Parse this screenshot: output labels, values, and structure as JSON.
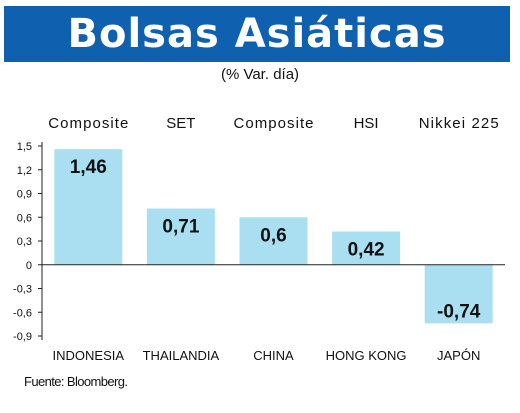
{
  "header": {
    "title": "Bolsas Asiáticas",
    "subtitle": "(% Var. día)"
  },
  "source": "Fuente: Bloomberg.",
  "colors": {
    "title_bg": "#1060b0",
    "bar": "#aadff2"
  },
  "chart_data": {
    "type": "bar",
    "title": "Bolsas Asiáticas",
    "subtitle": "(% Var. día)",
    "categories": [
      "INDONESIA",
      "THAILANDIA",
      "CHINA",
      "HONG KONG",
      "JAPÓN"
    ],
    "index_names": [
      "Composite",
      "SET",
      "Composite",
      "HSI",
      "Nikkei 225"
    ],
    "values": [
      1.46,
      0.71,
      0.6,
      0.42,
      -0.74
    ],
    "value_labels": [
      "1,46",
      "0,71",
      "0,6",
      "0,42",
      "-0,74"
    ],
    "yticks": [
      "1,5",
      "1,2",
      "0,9",
      "0,6",
      "0,3",
      "0",
      "-0,3",
      "-0,6",
      "-0,9"
    ],
    "ytick_values": [
      1.5,
      1.2,
      0.9,
      0.6,
      0.3,
      0,
      -0.3,
      -0.6,
      -0.9
    ],
    "ylim": [
      -0.9,
      1.5
    ],
    "grid": false,
    "legend": "none"
  }
}
